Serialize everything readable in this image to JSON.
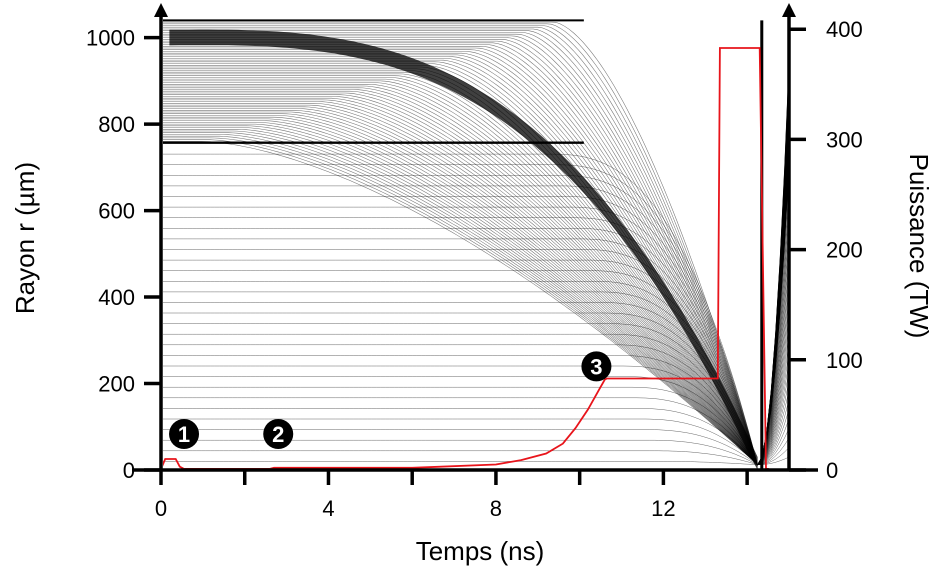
{
  "chart_data": {
    "type": "line",
    "xlabel": "Temps (ns)",
    "ylabel": "Rayon r (µm)",
    "y2label": "Puissance (TW)",
    "xlim": [
      0,
      15
    ],
    "ylim": [
      0,
      1050
    ],
    "y2lim": [
      0,
      412
    ],
    "xticks": [
      "0",
      "4",
      "8",
      "12"
    ],
    "yticks": [
      "0",
      "200",
      "400",
      "600",
      "800",
      "1000"
    ],
    "y2ticks": [
      "0",
      "100",
      "200",
      "300",
      "400"
    ],
    "colors": {
      "radius_lines": "#000000",
      "power": "#e8141b"
    },
    "series": [
      {
        "axis": "right",
        "x": [
          0,
          0.1,
          0.35,
          0.45,
          0.55,
          2.6,
          2.7,
          4,
          6,
          8,
          8.6,
          9.2,
          9.6,
          9.9,
          10.2,
          10.45,
          10.6,
          10.65,
          13.3,
          13.35,
          13.8,
          14.3,
          14.45,
          14.5,
          14.55
        ],
        "y": [
          1,
          10,
          10,
          3,
          1,
          1,
          2,
          2,
          2,
          5,
          9,
          15,
          24,
          38,
          55,
          72,
          82,
          83,
          83,
          383,
          383,
          383,
          1,
          1,
          0
        ]
      }
    ],
    "markers": [
      {
        "label": "1",
        "x": 0.55,
        "y": 20
      },
      {
        "label": "2",
        "x": 2.8,
        "y": 20
      },
      {
        "label": "3",
        "x": 10.4,
        "y": 94
      }
    ]
  }
}
